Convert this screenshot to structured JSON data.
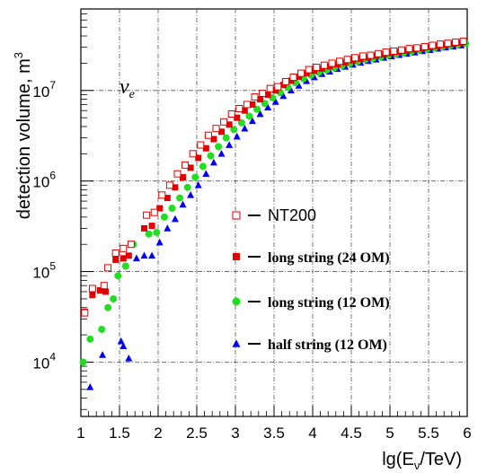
{
  "chart_data": {
    "type": "scatter",
    "title": "",
    "xlabel": "lg(E",
    "xlabel_sub": "ν",
    "xlabel_tail": "/TeV)",
    "ylabel": "detection volume, m",
    "ylabel_sup": "3",
    "xlim": [
      1,
      6
    ],
    "ylim_log10": [
      3.4,
      7.9
    ],
    "y_scale": "log",
    "grid": "on (dash-dot)",
    "annotation": {
      "text": "ν",
      "subscript": "e"
    },
    "x_ticks": [
      {
        "v": 1,
        "label": "1"
      },
      {
        "v": 1.5,
        "label": "1.5"
      },
      {
        "v": 2,
        "label": "2"
      },
      {
        "v": 2.5,
        "label": "2.5"
      },
      {
        "v": 3,
        "label": "3"
      },
      {
        "v": 3.5,
        "label": "3.5"
      },
      {
        "v": 4,
        "label": "4"
      },
      {
        "v": 4.5,
        "label": "4.5"
      },
      {
        "v": 5,
        "label": "5"
      },
      {
        "v": 5.5,
        "label": "5.5"
      },
      {
        "v": 6,
        "label": "6"
      }
    ],
    "y_ticks": [
      {
        "exp": 4,
        "base": "10",
        "sup": "4"
      },
      {
        "exp": 5,
        "base": "10",
        "sup": "5"
      },
      {
        "exp": 6,
        "base": "10",
        "sup": "6"
      },
      {
        "exp": 7,
        "base": "10",
        "sup": "7"
      }
    ],
    "legend_placement": "center-right",
    "series": [
      {
        "name": "NT200",
        "marker": "open-square",
        "color": "#e00000",
        "points": [
          [
            1.05,
            35000.0
          ],
          [
            1.15,
            65000.0
          ],
          [
            1.3,
            70000.0
          ],
          [
            1.35,
            110000.0
          ],
          [
            1.45,
            160000.0
          ],
          [
            1.55,
            180000.0
          ],
          [
            1.65,
            200000.0
          ],
          [
            1.85,
            420000.0
          ],
          [
            1.95,
            450000.0
          ],
          [
            2.05,
            700000.0
          ],
          [
            2.15,
            900000.0
          ],
          [
            2.25,
            1200000.0
          ],
          [
            2.35,
            1500000.0
          ],
          [
            2.45,
            2000000.0
          ],
          [
            2.55,
            2500000.0
          ],
          [
            2.65,
            3200000.0
          ],
          [
            2.75,
            3800000.0
          ],
          [
            2.85,
            4500000.0
          ],
          [
            2.95,
            5500000.0
          ],
          [
            3.05,
            6300000.0
          ],
          [
            3.15,
            7000000.0
          ],
          [
            3.25,
            8500000.0
          ],
          [
            3.35,
            9300000.0
          ],
          [
            3.45,
            10500000.0
          ],
          [
            3.55,
            11000000.0
          ],
          [
            3.65,
            12500000.0
          ],
          [
            3.75,
            14000000.0
          ],
          [
            3.85,
            15500000.0
          ],
          [
            3.95,
            17000000.0
          ],
          [
            4.05,
            18000000.0
          ],
          [
            4.15,
            19000000.0
          ],
          [
            4.25,
            20000000.0
          ],
          [
            4.35,
            21000000.0
          ],
          [
            4.45,
            22000000.0
          ],
          [
            4.55,
            23000000.0
          ],
          [
            4.65,
            24000000.0
          ],
          [
            4.75,
            24500000.0
          ],
          [
            4.85,
            25500000.0
          ],
          [
            4.95,
            26500000.0
          ],
          [
            5.05,
            27200000.0
          ],
          [
            5.15,
            28000000.0
          ],
          [
            5.25,
            29000000.0
          ],
          [
            5.35,
            29500000.0
          ],
          [
            5.45,
            30500000.0
          ],
          [
            5.55,
            31500000.0
          ],
          [
            5.65,
            32500000.0
          ],
          [
            5.75,
            33200000.0
          ],
          [
            5.85,
            34200000.0
          ],
          [
            5.95,
            35000000.0
          ]
        ]
      },
      {
        "name": "long string (24 OM)",
        "marker": "filled-square",
        "color": "#e00000",
        "points": [
          [
            1.05,
            36000.0
          ],
          [
            1.15,
            55000.0
          ],
          [
            1.25,
            62000.0
          ],
          [
            1.32,
            60000.0
          ],
          [
            1.45,
            135000.0
          ],
          [
            1.55,
            140000.0
          ],
          [
            1.62,
            150000.0
          ],
          [
            1.82,
            300000.0
          ],
          [
            1.92,
            320000.0
          ],
          [
            2.02,
            500000.0
          ],
          [
            2.12,
            650000.0
          ],
          [
            2.22,
            850000.0
          ],
          [
            2.32,
            1100000.0
          ],
          [
            2.42,
            1400000.0
          ],
          [
            2.52,
            1800000.0
          ],
          [
            2.62,
            2300000.0
          ],
          [
            2.72,
            2900000.0
          ],
          [
            2.82,
            3500000.0
          ],
          [
            2.92,
            4200000.0
          ],
          [
            3.02,
            5000000.0
          ],
          [
            3.12,
            6000000.0
          ],
          [
            3.22,
            7000000.0
          ],
          [
            3.32,
            8000000.0
          ],
          [
            3.42,
            9000000.0
          ],
          [
            3.52,
            10000000.0
          ],
          [
            3.62,
            11500000.0
          ],
          [
            3.72,
            12800000.0
          ],
          [
            3.82,
            14200000.0
          ],
          [
            3.92,
            15500000.0
          ],
          [
            4.02,
            16500000.0
          ],
          [
            4.12,
            17500000.0
          ],
          [
            4.22,
            18500000.0
          ],
          [
            4.32,
            19500000.0
          ],
          [
            4.42,
            20500000.0
          ],
          [
            4.52,
            21500000.0
          ],
          [
            4.62,
            22500000.0
          ],
          [
            4.72,
            23200000.0
          ],
          [
            4.82,
            24200000.0
          ],
          [
            4.92,
            25000000.0
          ],
          [
            5.02,
            26000000.0
          ],
          [
            5.12,
            26800000.0
          ],
          [
            5.22,
            27500000.0
          ],
          [
            5.32,
            28500000.0
          ],
          [
            5.42,
            29200000.0
          ],
          [
            5.52,
            30200000.0
          ],
          [
            5.62,
            31000000.0
          ],
          [
            5.72,
            32000000.0
          ],
          [
            5.82,
            32800000.0
          ],
          [
            5.92,
            33800000.0
          ]
        ]
      },
      {
        "name": "long string (12 OM)",
        "marker": "filled-circle",
        "color": "#22dd22",
        "points": [
          [
            1.03,
            10000.0
          ],
          [
            1.12,
            18000.0
          ],
          [
            1.27,
            23000.0
          ],
          [
            1.35,
            40000.0
          ],
          [
            1.42,
            50000.0
          ],
          [
            1.48,
            90000.0
          ],
          [
            1.58,
            115000.0
          ],
          [
            1.68,
            200000.0
          ],
          [
            1.88,
            260000.0
          ],
          [
            1.98,
            270000.0
          ],
          [
            2.08,
            400000.0
          ],
          [
            2.18,
            500000.0
          ],
          [
            2.28,
            650000.0
          ],
          [
            2.38,
            850000.0
          ],
          [
            2.48,
            1100000.0
          ],
          [
            2.58,
            1450000.0
          ],
          [
            2.68,
            1900000.0
          ],
          [
            2.78,
            2400000.0
          ],
          [
            2.88,
            3000000.0
          ],
          [
            2.98,
            3700000.0
          ],
          [
            3.08,
            4400000.0
          ],
          [
            3.18,
            5200000.0
          ],
          [
            3.28,
            6200000.0
          ],
          [
            3.38,
            7200000.0
          ],
          [
            3.48,
            8300000.0
          ],
          [
            3.58,
            9500000.0
          ],
          [
            3.68,
            10800000.0
          ],
          [
            3.78,
            12200000.0
          ],
          [
            3.88,
            13500000.0
          ],
          [
            3.98,
            14800000.0
          ],
          [
            4.08,
            15800000.0
          ],
          [
            4.18,
            16800000.0
          ],
          [
            4.28,
            17800000.0
          ],
          [
            4.38,
            18800000.0
          ],
          [
            4.48,
            19800000.0
          ],
          [
            4.58,
            20800000.0
          ],
          [
            4.68,
            21800000.0
          ],
          [
            4.78,
            22600000.0
          ],
          [
            4.88,
            23500000.0
          ],
          [
            4.98,
            24500000.0
          ],
          [
            5.08,
            25200000.0
          ],
          [
            5.18,
            26000000.0
          ],
          [
            5.28,
            27000000.0
          ],
          [
            5.38,
            27800000.0
          ],
          [
            5.48,
            28600000.0
          ],
          [
            5.58,
            29500000.0
          ],
          [
            5.68,
            30500000.0
          ],
          [
            5.78,
            31200000.0
          ],
          [
            5.88,
            32200000.0
          ],
          [
            5.98,
            33000000.0
          ]
        ]
      },
      {
        "name": "half string (12 OM)",
        "marker": "filled-triangle",
        "color": "#0000ee",
        "points": [
          [
            1.12,
            5300.0
          ],
          [
            1.28,
            12000.0
          ],
          [
            1.52,
            17000.0
          ],
          [
            1.55,
            15000.0
          ],
          [
            1.62,
            11000.0
          ],
          [
            1.72,
            140000.0
          ],
          [
            1.82,
            150000.0
          ],
          [
            1.92,
            150000.0
          ],
          [
            2.02,
            210000.0
          ],
          [
            2.12,
            300000.0
          ],
          [
            2.22,
            380000.0
          ],
          [
            2.32,
            550000.0
          ],
          [
            2.42,
            700000.0
          ],
          [
            2.52,
            900000.0
          ],
          [
            2.62,
            1200000.0
          ],
          [
            2.72,
            1600000.0
          ],
          [
            2.82,
            2000000.0
          ],
          [
            2.92,
            2500000.0
          ],
          [
            3.02,
            3100000.0
          ],
          [
            3.12,
            3800000.0
          ],
          [
            3.22,
            4600000.0
          ],
          [
            3.32,
            5500000.0
          ],
          [
            3.42,
            6500000.0
          ],
          [
            3.52,
            7500000.0
          ],
          [
            3.62,
            8700000.0
          ],
          [
            3.72,
            10000000.0
          ],
          [
            3.82,
            11300000.0
          ],
          [
            3.92,
            12700000.0
          ],
          [
            4.02,
            14000000.0
          ],
          [
            4.12,
            15200000.0
          ],
          [
            4.22,
            16200000.0
          ],
          [
            4.32,
            17300000.0
          ],
          [
            4.42,
            18300000.0
          ],
          [
            4.52,
            19300000.0
          ],
          [
            4.62,
            20300000.0
          ],
          [
            4.72,
            21200000.0
          ],
          [
            4.82,
            22000000.0
          ],
          [
            4.92,
            23000000.0
          ],
          [
            5.02,
            23800000.0
          ],
          [
            5.12,
            24700000.0
          ],
          [
            5.22,
            25500000.0
          ],
          [
            5.32,
            26300000.0
          ],
          [
            5.42,
            27200000.0
          ],
          [
            5.52,
            28000000.0
          ],
          [
            5.62,
            29000000.0
          ],
          [
            5.72,
            29800000.0
          ],
          [
            5.82,
            30600000.0
          ],
          [
            5.92,
            31500000.0
          ]
        ]
      }
    ]
  }
}
